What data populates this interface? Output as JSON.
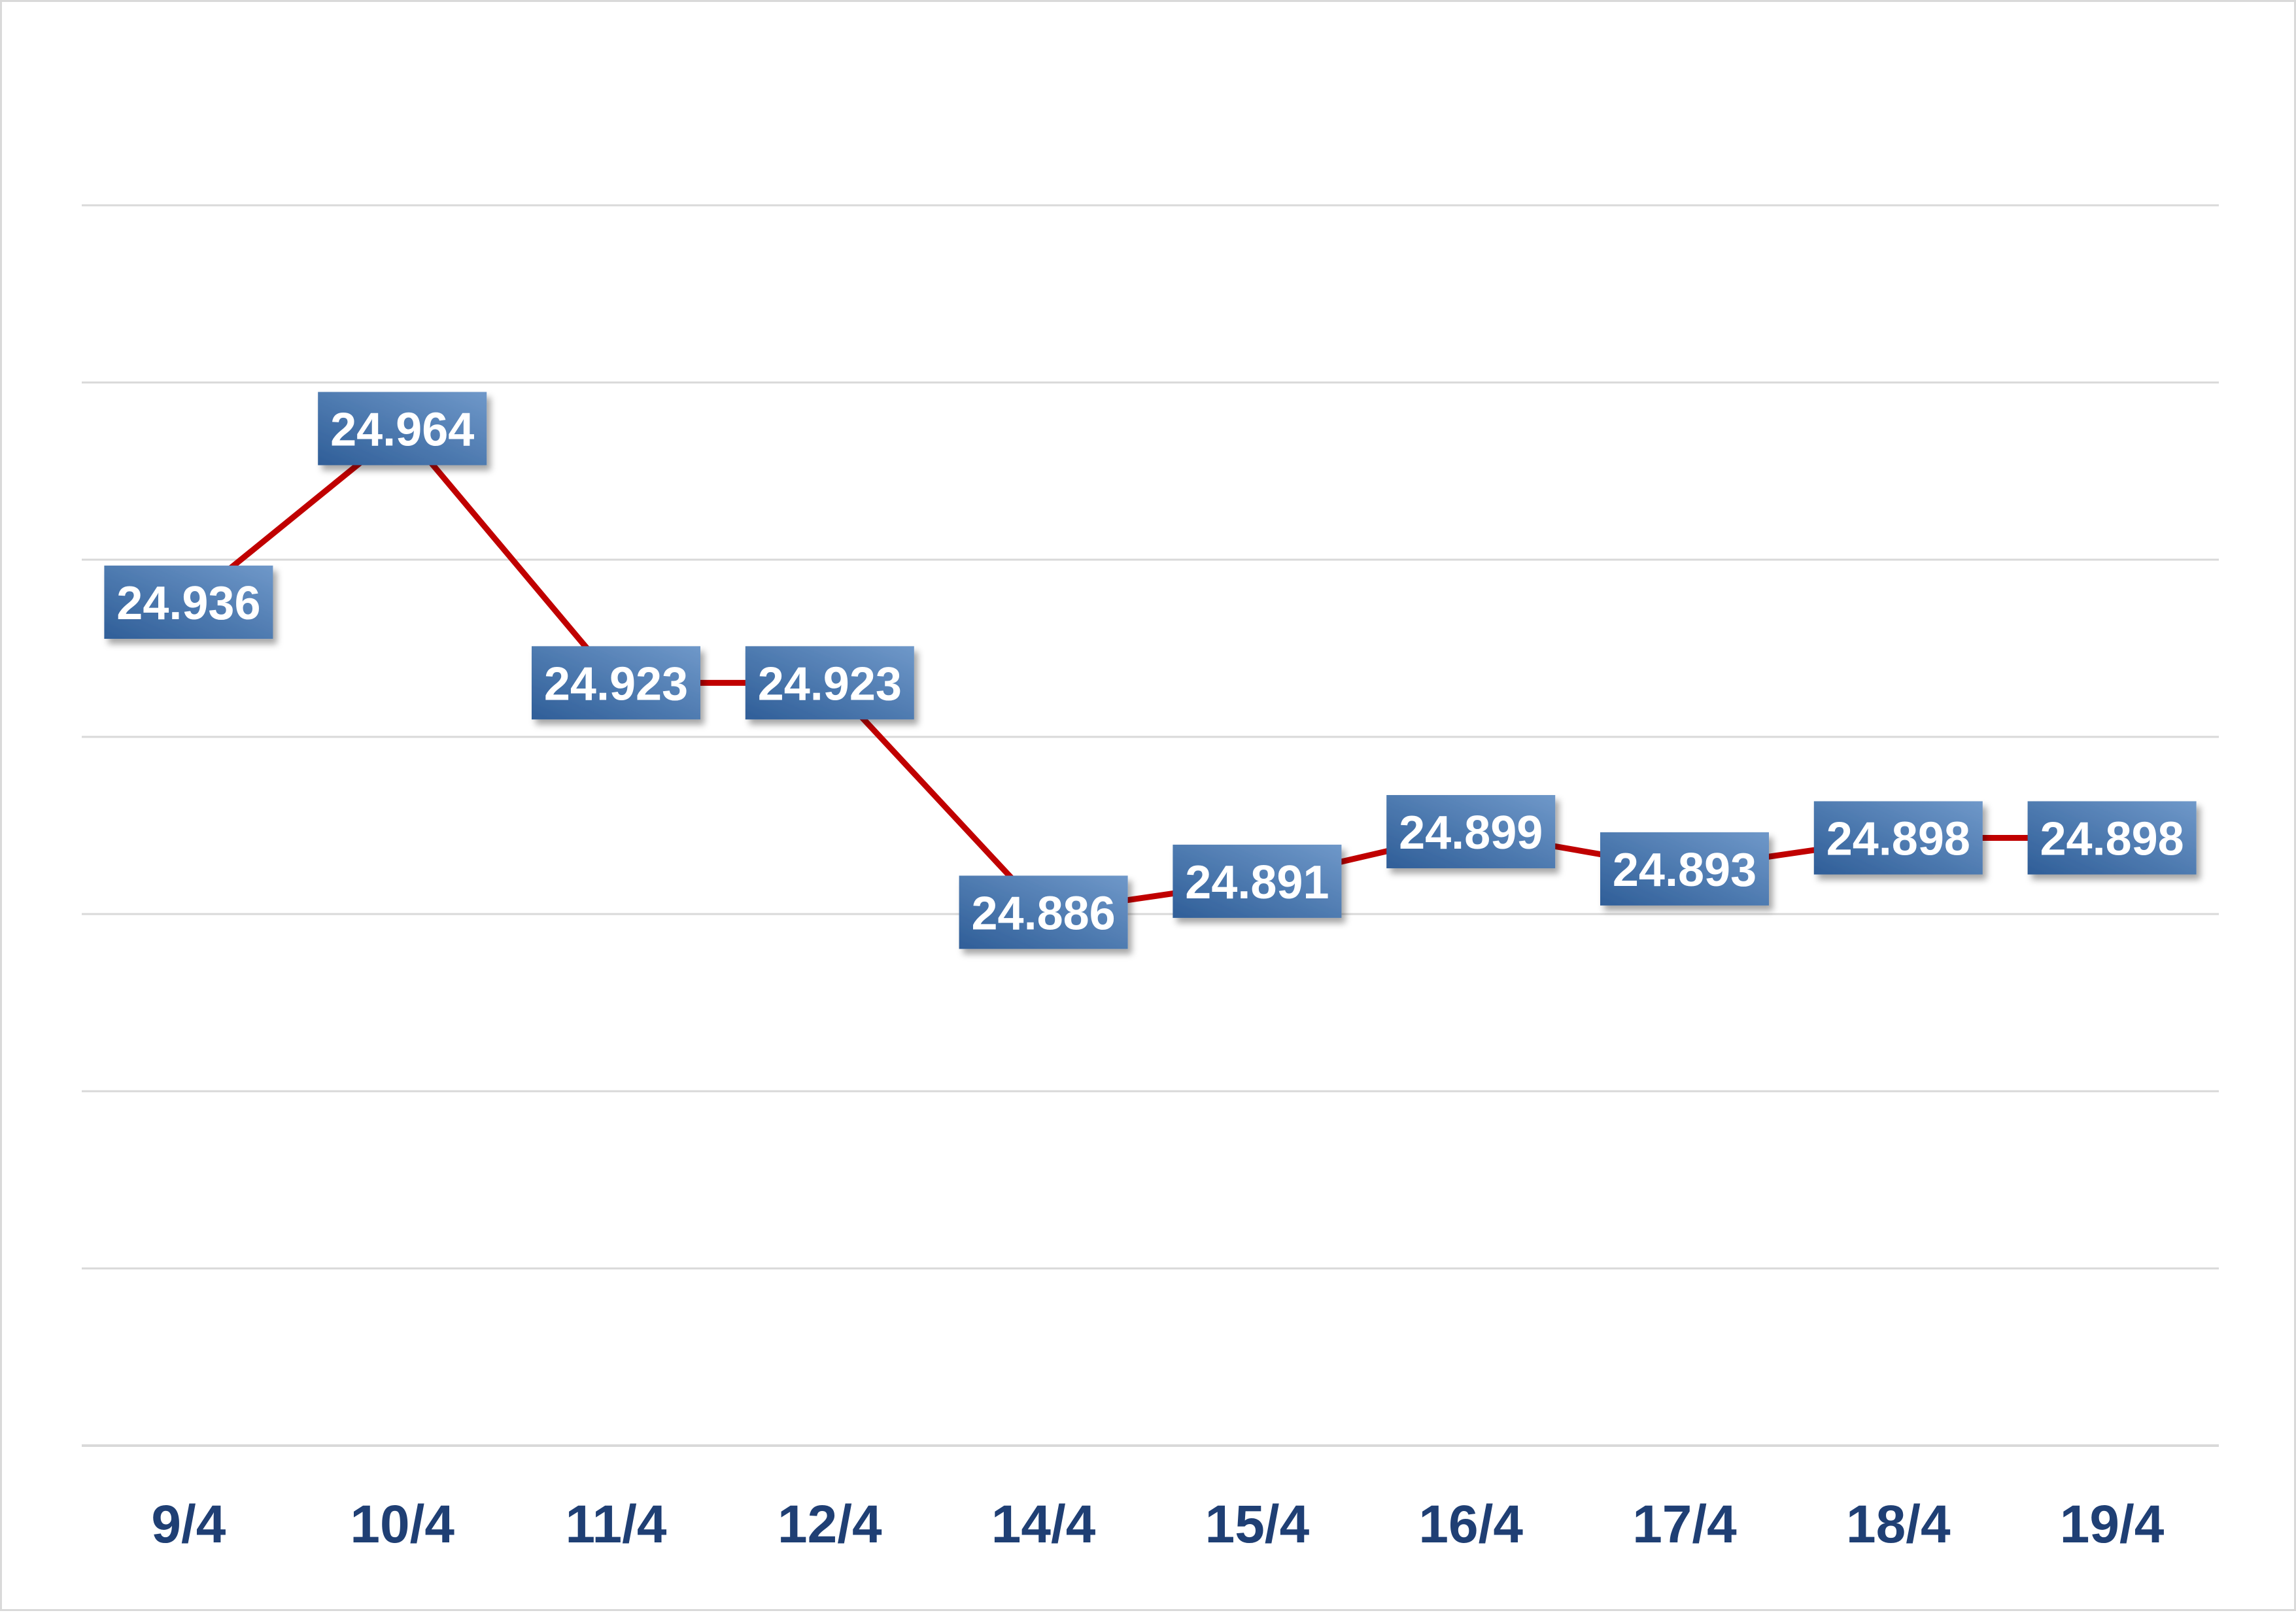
{
  "chart_data": {
    "type": "line",
    "title": "",
    "xlabel": "",
    "ylabel": "",
    "categories": [
      "9/4",
      "10/4",
      "11/4",
      "12/4",
      "14/4",
      "15/4",
      "16/4",
      "17/4",
      "18/4",
      "19/4"
    ],
    "series": [
      {
        "values": [
          24936,
          24964,
          24923,
          24923,
          24886,
          24891,
          24899,
          24893,
          24898,
          24898
        ],
        "labels": [
          "24.936",
          "24.964",
          "24.923",
          "24.923",
          "24.886",
          "24.891",
          "24.899",
          "24.893",
          "24.898",
          "24.898"
        ]
      }
    ],
    "ylim": [
      24800,
      25000
    ],
    "grid": true,
    "legend": "none",
    "colors": {
      "line": "#c00000",
      "label_box_top": "#6f98c9",
      "label_box_bottom": "#2f5e98",
      "label_text": "#ffffff",
      "tick_text": "#1f3f74",
      "grid": "#d9d9d9",
      "border": "#d9d9d9"
    }
  }
}
